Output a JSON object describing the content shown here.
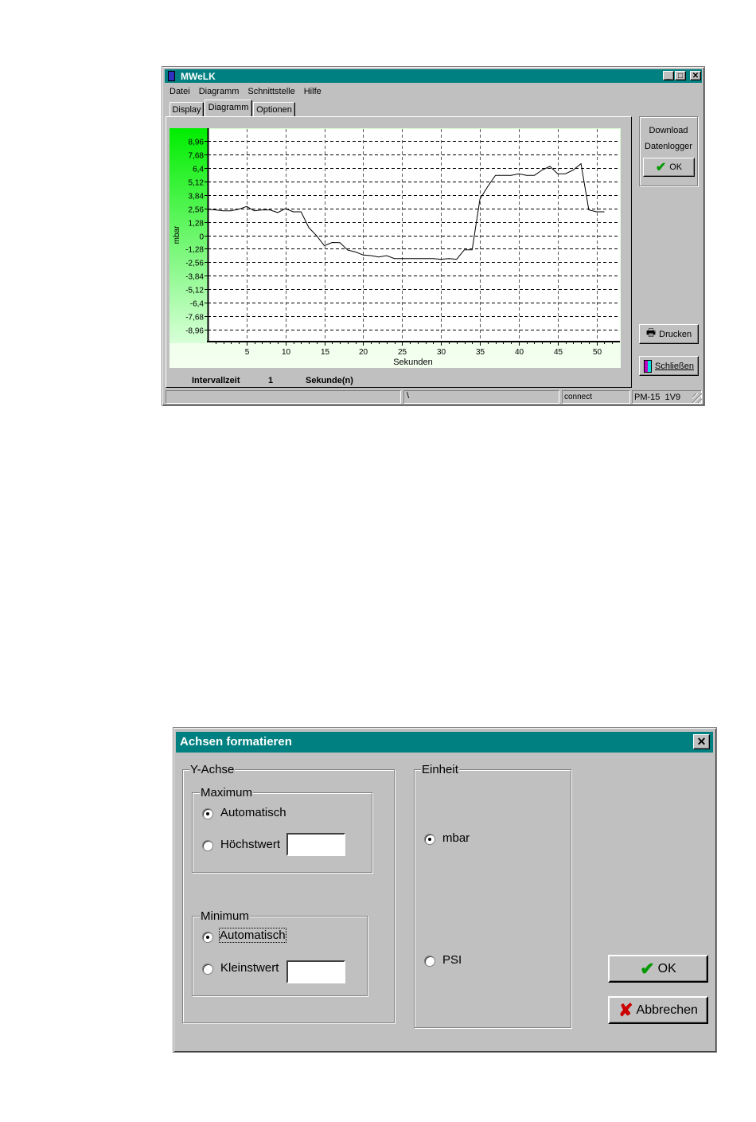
{
  "main_window": {
    "title": "MWeLK",
    "menu": [
      "Datei",
      "Diagramm",
      "Schnittstelle",
      "Hilfe"
    ],
    "tabs": [
      {
        "label": "Display",
        "active": false
      },
      {
        "label": "Diagramm",
        "active": true
      },
      {
        "label": "Optionen",
        "active": false
      }
    ],
    "right_panel": {
      "download_label": "Download",
      "datenlogger_label": "Datenlogger",
      "ok_label": "OK",
      "print_label": "Drucken",
      "close_label": "Schließen"
    },
    "interval": {
      "label": "Intervallzeit",
      "value": "1",
      "unit": "Sekunde(n)"
    },
    "status_bar": [
      "",
      "\\",
      "connect",
      "PM-15  1V9"
    ]
  },
  "chart_data": {
    "type": "line",
    "xlabel": "Sekunden",
    "ylabel": "mbar",
    "xlim": [
      0,
      53
    ],
    "ylim": [
      -10.1,
      10.1
    ],
    "x_ticks": [
      5,
      10,
      15,
      20,
      25,
      30,
      35,
      40,
      45,
      50
    ],
    "x_tick_labels": [
      "5",
      "10",
      "15",
      "20",
      "25",
      "30",
      "35",
      "40",
      "45",
      "50"
    ],
    "y_ticks": [
      8.96,
      7.68,
      6.4,
      5.12,
      3.84,
      2.56,
      1.28,
      0,
      -1.28,
      -2.56,
      -3.84,
      -5.12,
      -6.4,
      -7.68,
      -8.96
    ],
    "y_tick_labels": [
      "8,96",
      "7,68",
      "6,4",
      "5,12",
      "3,84",
      "2,56",
      "1,28",
      "0",
      "-1,28",
      "-2,56",
      "-3,84",
      "-5,12",
      "-6,4",
      "-7,68",
      "-8,96"
    ],
    "grid": true,
    "colors": {
      "line": "#000000",
      "grid": "#000000",
      "axis_band": "#00ff00"
    },
    "x": [
      0,
      1,
      2,
      3,
      4,
      5,
      6,
      7,
      8,
      9,
      10,
      11,
      12,
      13,
      14,
      15,
      16,
      17,
      18,
      19,
      20,
      21,
      22,
      23,
      24,
      25,
      26,
      27,
      28,
      29,
      30,
      31,
      32,
      33,
      34,
      35,
      36,
      37,
      38,
      39,
      40,
      41,
      42,
      43,
      44,
      45,
      46,
      47,
      48,
      49,
      50,
      51
    ],
    "y": [
      2.48,
      2.41,
      2.33,
      2.33,
      2.48,
      2.74,
      2.33,
      2.41,
      2.41,
      2.16,
      2.54,
      2.23,
      2.23,
      0.73,
      -0.03,
      -0.98,
      -0.68,
      -0.7,
      -1.41,
      -1.58,
      -1.88,
      -1.93,
      -2.06,
      -1.93,
      -2.21,
      -2.21,
      -2.21,
      -2.21,
      -2.21,
      -2.21,
      -2.28,
      -2.21,
      -2.28,
      -1.38,
      -1.38,
      3.44,
      4.62,
      5.7,
      5.7,
      5.7,
      5.85,
      5.7,
      5.7,
      6.2,
      6.55,
      5.85,
      5.85,
      6.2,
      6.8,
      2.41,
      2.23,
      2.23
    ]
  },
  "dialog": {
    "title": "Achsen formatieren",
    "close_icon": "close-icon",
    "y_axis_group": "Y-Achse",
    "maximum": {
      "label": "Maximum",
      "auto_label": "Automatisch",
      "value_label": "Höchstwert",
      "selected": "auto",
      "value": ""
    },
    "minimum": {
      "label": "Minimum",
      "auto_label": "Automatisch",
      "value_label": "Kleinstwert",
      "selected": "auto",
      "value": ""
    },
    "unit_group": "Einheit",
    "units": [
      {
        "label": "mbar",
        "selected": true
      },
      {
        "label": "PSI",
        "selected": false
      }
    ],
    "ok_label": "OK",
    "cancel_label": "Abbrechen",
    "colors": {
      "title_bar": "#008080",
      "ok_check": "#009900",
      "cancel_x": "#cc0000"
    }
  }
}
